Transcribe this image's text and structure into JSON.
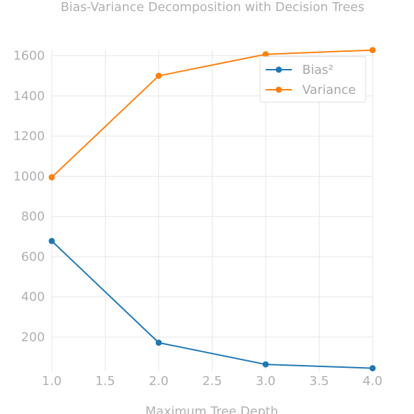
{
  "chart_data": {
    "type": "line",
    "title": "Bias-Variance Decomposition with Decision Trees",
    "xlabel": "Maximum Tree Depth",
    "ylabel": "",
    "xlim": [
      1.0,
      4.0
    ],
    "ylim": [
      30,
      1630
    ],
    "x_ticks": [
      1.0,
      1.5,
      2.0,
      2.5,
      3.0,
      3.5,
      4.0
    ],
    "x_tick_labels": [
      "1.0",
      "1.5",
      "2.0",
      "2.5",
      "3.0",
      "3.5",
      "4.0"
    ],
    "y_ticks": [
      200,
      400,
      600,
      800,
      1000,
      1200,
      1400,
      1600
    ],
    "y_tick_labels": [
      "200",
      "400",
      "600",
      "800",
      "1000",
      "1200",
      "1400",
      "1600"
    ],
    "grid": true,
    "legend_position": "top-right",
    "series": [
      {
        "name": "Bias²",
        "color": "#1f77b4",
        "x": [
          1,
          2,
          3,
          4
        ],
        "values": [
          678,
          172,
          64,
          45
        ]
      },
      {
        "name": "Variance",
        "color": "#ff7f0e",
        "x": [
          1,
          2,
          3,
          4
        ],
        "values": [
          995,
          1500,
          1607,
          1628
        ]
      }
    ]
  }
}
